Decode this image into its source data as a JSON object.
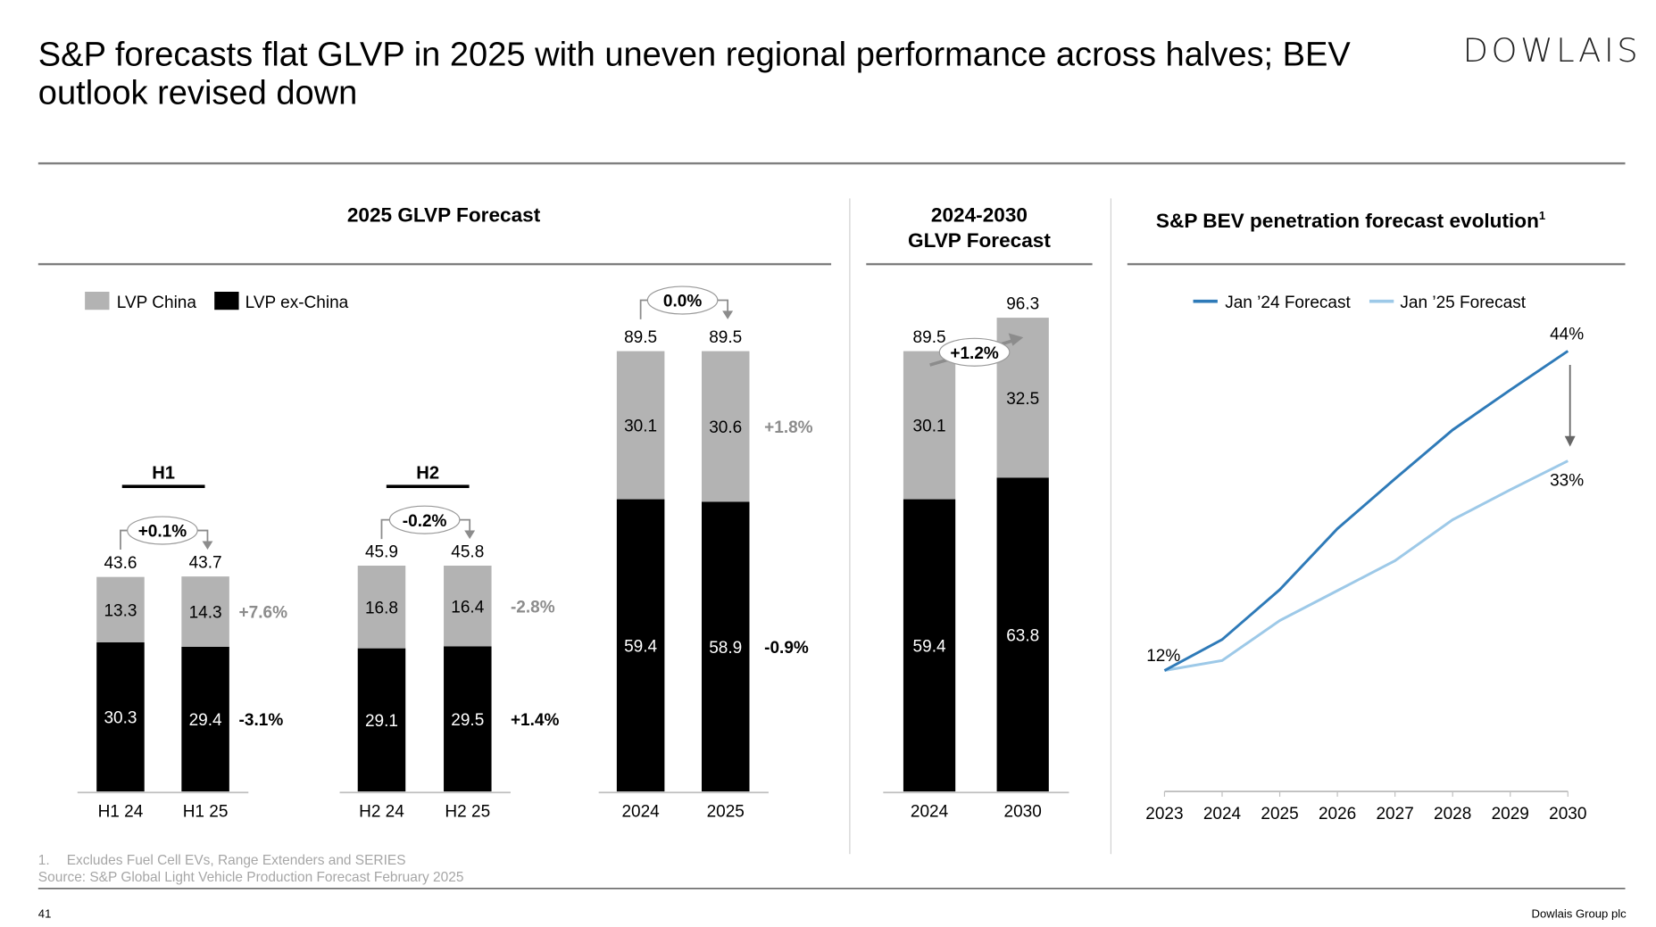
{
  "header": {
    "title": "S&P forecasts flat GLVP in 2025 with uneven regional performance across halves; BEV outlook revised down",
    "logo": "DOWLAIS"
  },
  "sections": {
    "glvp_2025": "2025 GLVP Forecast",
    "glvp_2030_l1": "2024-2030",
    "glvp_2030_l2": "GLVP Forecast",
    "bev": "S&P BEV penetration forecast evolution",
    "bev_sup": "1"
  },
  "legend": {
    "china": "LVP China",
    "exchina": "LVP ex-China"
  },
  "colors": {
    "china": "#b3b3b3",
    "exchina": "#000000",
    "jan24": "#2e7ab8",
    "jan25": "#9dc9e8",
    "axis": "#bfbfbf",
    "delta_gray": "#8c8c8c"
  },
  "chart_data": [
    {
      "type": "bar",
      "stacked": true,
      "title": "H1",
      "categories": [
        "H1 24",
        "H1 25"
      ],
      "series": [
        {
          "name": "LVP ex-China",
          "values": [
            30.3,
            29.4
          ]
        },
        {
          "name": "LVP China",
          "values": [
            13.3,
            14.3
          ]
        }
      ],
      "totals": [
        43.6,
        43.7
      ],
      "total_change": "+0.1%",
      "china_change": "+7.6%",
      "exchina_change": "-3.1%"
    },
    {
      "type": "bar",
      "stacked": true,
      "title": "H2",
      "categories": [
        "H2 24",
        "H2 25"
      ],
      "series": [
        {
          "name": "LVP ex-China",
          "values": [
            29.1,
            29.5
          ]
        },
        {
          "name": "LVP China",
          "values": [
            16.8,
            16.4
          ]
        }
      ],
      "totals": [
        45.9,
        45.8
      ],
      "total_change": "-0.2%",
      "china_change": "-2.8%",
      "exchina_change": "+1.4%"
    },
    {
      "type": "bar",
      "stacked": true,
      "title": "",
      "categories": [
        "2024",
        "2025"
      ],
      "series": [
        {
          "name": "LVP ex-China",
          "values": [
            59.4,
            58.9
          ]
        },
        {
          "name": "LVP China",
          "values": [
            30.1,
            30.6
          ]
        }
      ],
      "totals": [
        89.5,
        89.5
      ],
      "total_change": "0.0%",
      "china_change": "+1.8%",
      "exchina_change": "-0.9%"
    },
    {
      "type": "bar",
      "stacked": true,
      "title": "2024-2030 GLVP Forecast",
      "categories": [
        "2024",
        "2030"
      ],
      "series": [
        {
          "name": "LVP ex-China",
          "values": [
            59.4,
            63.8
          ]
        },
        {
          "name": "LVP China",
          "values": [
            30.1,
            32.5
          ]
        }
      ],
      "totals": [
        89.5,
        96.3
      ],
      "total_change": "+1.2%"
    },
    {
      "type": "line",
      "title": "S&P BEV penetration forecast evolution",
      "x": [
        "2023",
        "2024",
        "2025",
        "2026",
        "2027",
        "2028",
        "2029",
        "2030"
      ],
      "series": [
        {
          "name": "Jan '24 Forecast",
          "values": [
            12,
            15.1,
            20.1,
            26.2,
            31.2,
            36.1,
            40.1,
            44
          ]
        },
        {
          "name": "Jan '25 Forecast",
          "values": [
            12,
            13,
            17,
            20,
            23,
            27.1,
            30.1,
            33
          ]
        }
      ],
      "annotations": {
        "start": "12%",
        "jan24_end": "44%",
        "jan25_end": "33%"
      },
      "legend": [
        "Jan ’24 Forecast",
        "Jan ’25 Forecast"
      ]
    }
  ],
  "footer": {
    "note1_num": "1.",
    "note1": "Excludes Fuel Cell EVs, Range Extenders and SERIES",
    "source": "Source: S&P Global Light Vehicle Production Forecast February 2025",
    "page": "41",
    "company": "Dowlais Group plc"
  }
}
